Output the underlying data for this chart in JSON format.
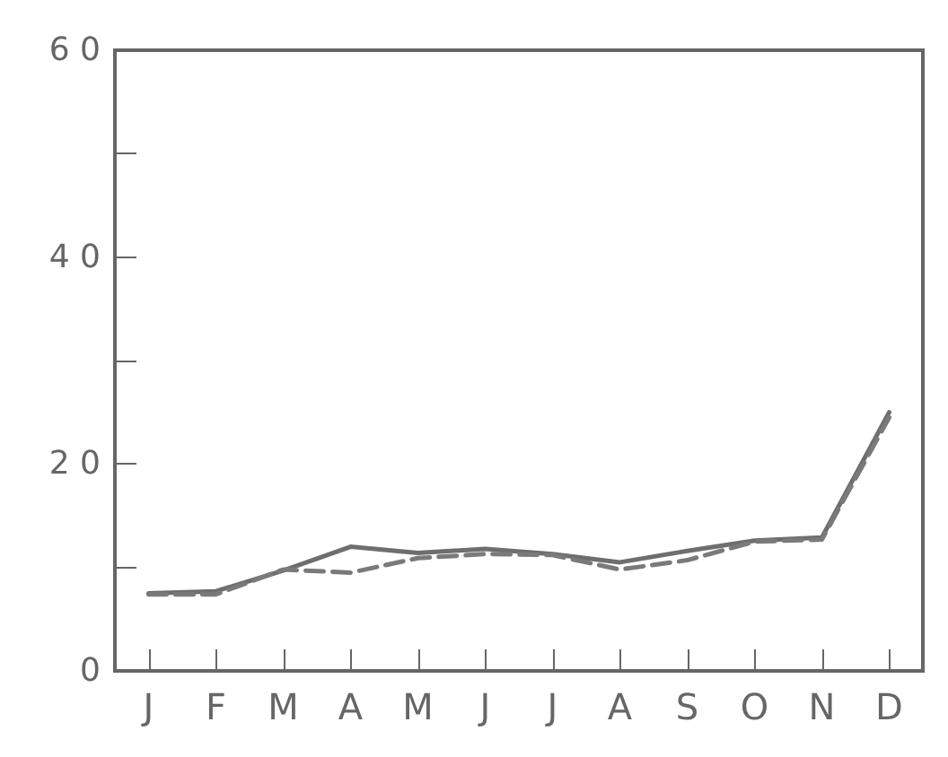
{
  "chart_data": {
    "type": "line",
    "categories": [
      "J",
      "F",
      "M",
      "A",
      "M",
      "J",
      "J",
      "A",
      "S",
      "O",
      "N",
      "D"
    ],
    "series": [
      {
        "color": "#6e6e6e",
        "line_style": "solid",
        "values": [
          7.5,
          7.7,
          9.7,
          12.0,
          11.4,
          11.8,
          11.3,
          10.5,
          11.6,
          12.6,
          12.9,
          25
        ]
      },
      {
        "color": "#7a7a7a",
        "line_style": "dashed",
        "values": [
          7.4,
          7.4,
          9.8,
          9.5,
          10.9,
          11.3,
          11.2,
          9.8,
          10.7,
          12.5,
          12.7,
          24.5
        ]
      }
    ],
    "ylim": [
      0,
      60
    ],
    "yticks": [
      0,
      {
        "value": 10,
        "label": null
      },
      20,
      {
        "value": 30,
        "label": null
      },
      40,
      {
        "value": 50,
        "label": null
      },
      60
    ],
    "grid": false,
    "marker": "none"
  }
}
